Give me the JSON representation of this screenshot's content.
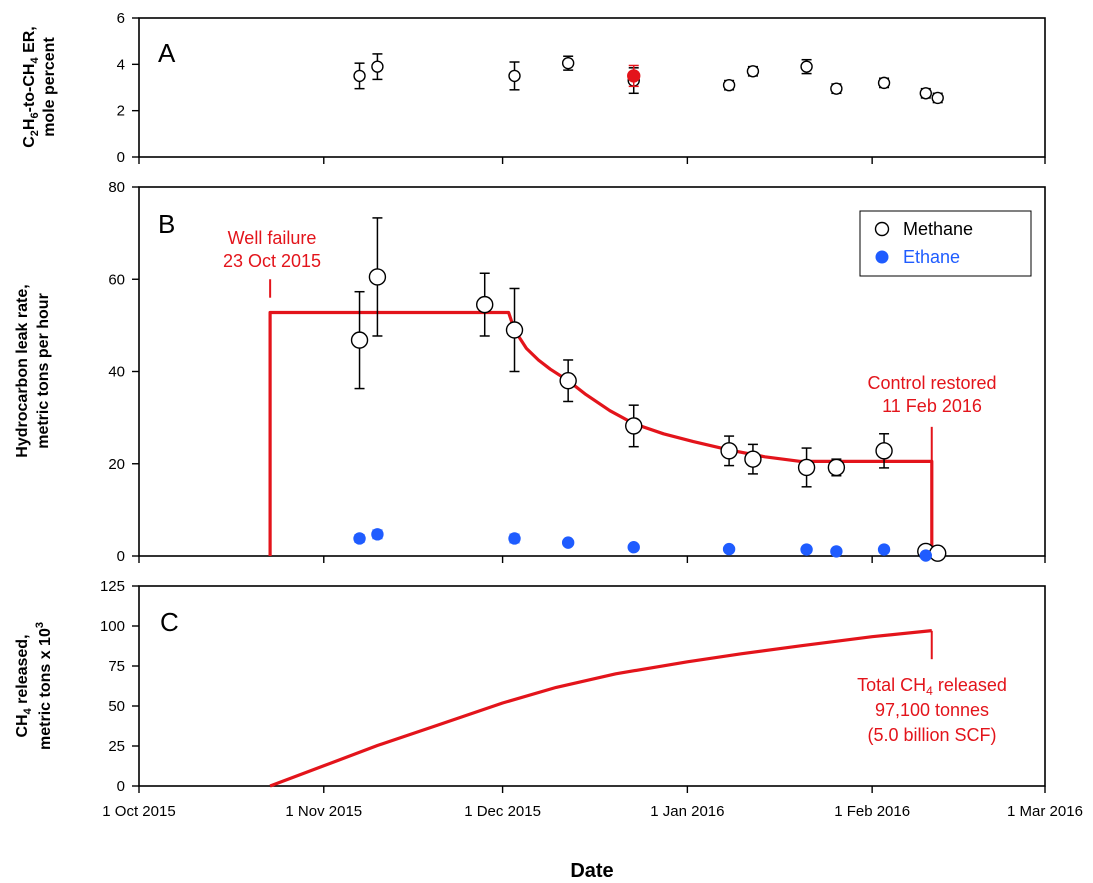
{
  "x_axis": {
    "label": "Date",
    "ticks": [
      {
        "date": "2015-10-01",
        "label": "1 Oct 2015"
      },
      {
        "date": "2015-11-01",
        "label": "1 Nov 2015"
      },
      {
        "date": "2015-12-01",
        "label": "1 Dec 2015"
      },
      {
        "date": "2016-01-01",
        "label": "1 Jan 2016"
      },
      {
        "date": "2016-02-01",
        "label": "1 Feb 2016"
      },
      {
        "date": "2016-03-01",
        "label": "1 Mar 2016"
      }
    ],
    "xlim": [
      "2015-10-01",
      "2016-03-01"
    ]
  },
  "colors": {
    "methane": "#000000",
    "ethane": "#1f5cff",
    "red": "#e3141b"
  },
  "chart_data": [
    {
      "panel": "A",
      "type": "scatter",
      "ylabel_line1_parts": [
        "C",
        "2",
        "H",
        "6",
        "-to-CH",
        "4",
        " ER,"
      ],
      "ylabel_line2": "mole percent",
      "ylim": [
        0,
        6
      ],
      "yticks": [
        0,
        2,
        4,
        6
      ],
      "series": [
        {
          "style": "open-circle-black",
          "points": [
            {
              "x": "2015-11-07",
              "y": 3.5,
              "err": 0.55
            },
            {
              "x": "2015-11-10",
              "y": 3.9,
              "err": 0.55
            },
            {
              "x": "2015-12-03",
              "y": 3.5,
              "err": 0.6
            },
            {
              "x": "2015-12-12",
              "y": 4.05,
              "err": 0.3
            },
            {
              "x": "2015-12-23",
              "y": 3.3,
              "err": 0.55
            },
            {
              "x": "2016-01-08",
              "y": 3.1,
              "err": 0.2
            },
            {
              "x": "2016-01-12",
              "y": 3.7,
              "err": 0.2
            },
            {
              "x": "2016-01-21",
              "y": 3.9,
              "err": 0.3
            },
            {
              "x": "2016-01-26",
              "y": 2.95,
              "err": 0.2
            },
            {
              "x": "2016-02-03",
              "y": 3.2,
              "err": 0.2
            },
            {
              "x": "2016-02-10",
              "y": 2.75,
              "err": 0.2
            },
            {
              "x": "2016-02-12",
              "y": 2.55,
              "err": 0.2
            }
          ]
        },
        {
          "style": "filled-circle-red",
          "points": [
            {
              "x": "2015-12-23",
              "y": 3.5,
              "err": 0.45
            }
          ]
        }
      ]
    },
    {
      "panel": "B",
      "type": "scatter",
      "ylabel_line1": "Hydrocarbon leak rate,",
      "ylabel_line2": "metric tons per hour",
      "ylim": [
        0,
        80
      ],
      "yticks": [
        0,
        20,
        40,
        60,
        80
      ],
      "legend": {
        "placement": "top-right",
        "entries": [
          {
            "name": "Methane",
            "style": "open-circle-black"
          },
          {
            "name": "Ethane",
            "style": "filled-circle-blue"
          }
        ]
      },
      "series": [
        {
          "name": "Methane",
          "style": "open-circle-black",
          "points": [
            {
              "x": "2015-11-07",
              "y": 46.8,
              "err_low": 10.5,
              "err_high": 10.5
            },
            {
              "x": "2015-11-10",
              "y": 60.5,
              "err_low": 12.8,
              "err_high": 12.8
            },
            {
              "x": "2015-11-28",
              "y": 54.5,
              "err_low": 6.8,
              "err_high": 6.8
            },
            {
              "x": "2015-12-03",
              "y": 49.0,
              "err_low": 9.0,
              "err_high": 9.0
            },
            {
              "x": "2015-12-12",
              "y": 38.0,
              "err_low": 4.5,
              "err_high": 4.5
            },
            {
              "x": "2015-12-23",
              "y": 28.2,
              "err_low": 4.5,
              "err_high": 4.5
            },
            {
              "x": "2016-01-08",
              "y": 22.8,
              "err_low": 3.2,
              "err_high": 3.2
            },
            {
              "x": "2016-01-12",
              "y": 21.0,
              "err_low": 3.2,
              "err_high": 3.2
            },
            {
              "x": "2016-01-21",
              "y": 19.2,
              "err_low": 4.2,
              "err_high": 4.2
            },
            {
              "x": "2016-01-26",
              "y": 19.2,
              "err_low": 1.8,
              "err_high": 1.8
            },
            {
              "x": "2016-02-03",
              "y": 22.8,
              "err_low": 3.7,
              "err_high": 3.7
            },
            {
              "x": "2016-02-10",
              "y": 1.0,
              "err_low": 0,
              "err_high": 0
            },
            {
              "x": "2016-02-12",
              "y": 0.6,
              "err_low": 0,
              "err_high": 0
            }
          ]
        },
        {
          "name": "Ethane",
          "style": "filled-circle-blue",
          "points": [
            {
              "x": "2015-11-07",
              "y": 3.8,
              "err_low": 0.8,
              "err_high": 0.8
            },
            {
              "x": "2015-11-10",
              "y": 4.7,
              "err_low": 0.9,
              "err_high": 0.9
            },
            {
              "x": "2015-12-03",
              "y": 3.8,
              "err_low": 0.9,
              "err_high": 0.9
            },
            {
              "x": "2015-12-12",
              "y": 2.9,
              "err_low": 0.4,
              "err_high": 0.4
            },
            {
              "x": "2015-12-23",
              "y": 1.9,
              "err_low": 0.3,
              "err_high": 0.3
            },
            {
              "x": "2016-01-08",
              "y": 1.5,
              "err_low": 0.2,
              "err_high": 0.2
            },
            {
              "x": "2016-01-21",
              "y": 1.4,
              "err_low": 0.2,
              "err_high": 0.2
            },
            {
              "x": "2016-01-26",
              "y": 1.0,
              "err_low": 0.2,
              "err_high": 0.2
            },
            {
              "x": "2016-02-03",
              "y": 1.4,
              "err_low": 0.2,
              "err_high": 0.2
            },
            {
              "x": "2016-02-10",
              "y": 0.1,
              "err_low": 0,
              "err_high": 0
            }
          ]
        },
        {
          "style": "red-line",
          "type": "line",
          "points": [
            {
              "x": "2015-10-23",
              "y": 0
            },
            {
              "x": "2015-10-23",
              "y": 52.8
            },
            {
              "x": "2015-12-02",
              "y": 52.8
            },
            {
              "x": "2015-12-03",
              "y": 49.0
            },
            {
              "x": "2015-12-05",
              "y": 45.0
            },
            {
              "x": "2015-12-07",
              "y": 42.5
            },
            {
              "x": "2015-12-09",
              "y": 40.5
            },
            {
              "x": "2015-12-12",
              "y": 38.0
            },
            {
              "x": "2015-12-15",
              "y": 35.0
            },
            {
              "x": "2015-12-19",
              "y": 31.5
            },
            {
              "x": "2015-12-23",
              "y": 28.7
            },
            {
              "x": "2015-12-28",
              "y": 26.5
            },
            {
              "x": "2016-01-02",
              "y": 24.8
            },
            {
              "x": "2016-01-08",
              "y": 23.0
            },
            {
              "x": "2016-01-14",
              "y": 21.5
            },
            {
              "x": "2016-01-20",
              "y": 20.5
            },
            {
              "x": "2016-02-11",
              "y": 20.5
            },
            {
              "x": "2016-02-11",
              "y": 0
            }
          ]
        }
      ],
      "annotations": [
        {
          "lines": [
            "Well failure",
            "23 Oct 2015"
          ],
          "x": "2015-10-23",
          "marker_y": [
            56,
            60
          ]
        },
        {
          "lines": [
            "Control restored",
            "11 Feb 2016"
          ],
          "x": "2016-02-11",
          "marker_y": [
            20.5,
            28
          ]
        }
      ]
    },
    {
      "panel": "C",
      "type": "line",
      "ylabel_line1_parts": [
        "CH",
        "4",
        " released,"
      ],
      "ylabel_line2_parts": [
        "metric tons x 10",
        "3"
      ],
      "ylim": [
        0,
        125
      ],
      "yticks": [
        0,
        25,
        50,
        75,
        100,
        125
      ],
      "series": [
        {
          "style": "red-line",
          "points": [
            {
              "x": "2015-10-23",
              "y": 0
            },
            {
              "x": "2015-11-01",
              "y": 12.6
            },
            {
              "x": "2015-11-10",
              "y": 25.3
            },
            {
              "x": "2015-11-20",
              "y": 37.9
            },
            {
              "x": "2015-12-01",
              "y": 51.9
            },
            {
              "x": "2015-12-10",
              "y": 61.6
            },
            {
              "x": "2015-12-20",
              "y": 70.1
            },
            {
              "x": "2016-01-01",
              "y": 77.6
            },
            {
              "x": "2016-01-10",
              "y": 82.6
            },
            {
              "x": "2016-01-20",
              "y": 87.6
            },
            {
              "x": "2016-02-01",
              "y": 93.3
            },
            {
              "x": "2016-02-11",
              "y": 97.1
            }
          ]
        }
      ],
      "annotation": {
        "line1_parts": [
          "Total CH",
          "4",
          " released"
        ],
        "line2": "97,100 tonnes",
        "line3": "(5.0 billion SCF)",
        "x": "2016-02-11",
        "marker_y": [
          88,
          97
        ]
      }
    }
  ]
}
